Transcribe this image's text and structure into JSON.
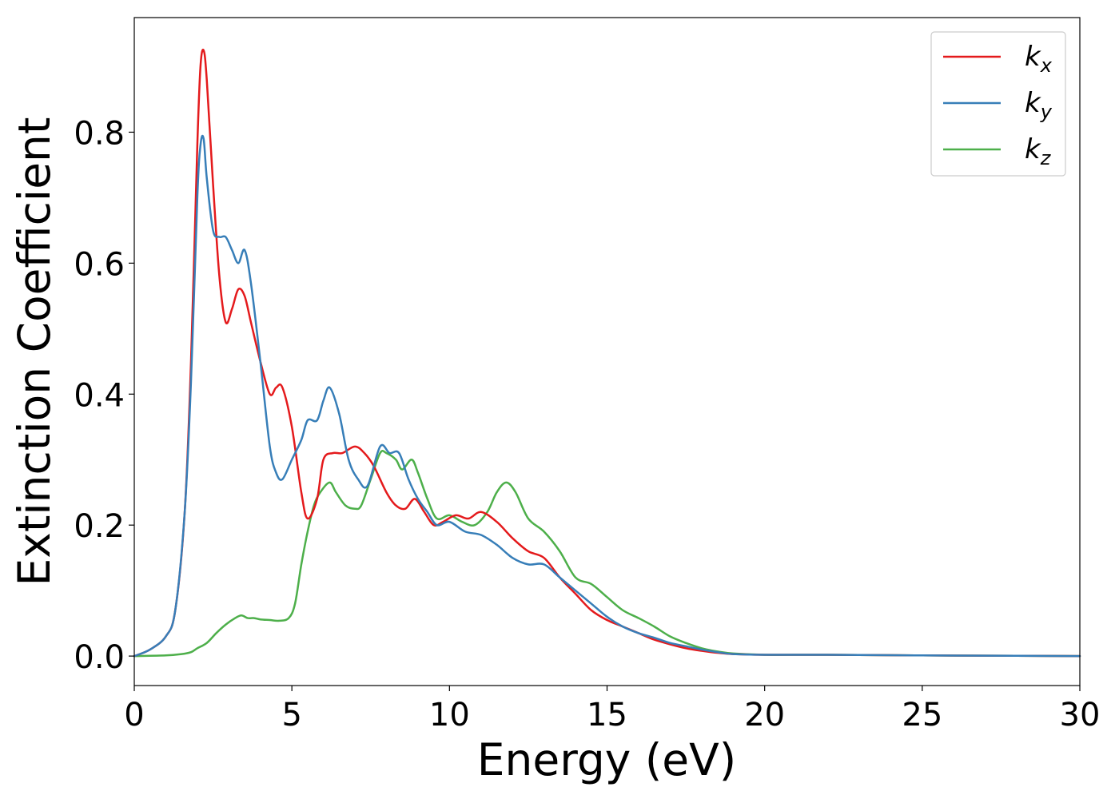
{
  "chart_data": {
    "type": "line",
    "title": "",
    "xlabel": "Energy (eV)",
    "ylabel": "Extinction Coefficient",
    "xlim": [
      0,
      30
    ],
    "ylim": [
      -0.045,
      0.975
    ],
    "xticks": [
      0,
      5,
      10,
      15,
      20,
      25,
      30
    ],
    "xtick_labels": [
      "0",
      "5",
      "10",
      "15",
      "20",
      "25",
      "30"
    ],
    "yticks": [
      0.0,
      0.2,
      0.4,
      0.6,
      0.8
    ],
    "ytick_labels": [
      "0.0",
      "0.2",
      "0.4",
      "0.6",
      "0.8"
    ],
    "grid": false,
    "legend_position": "top-right",
    "series": [
      {
        "name": "k_x",
        "label_base": "k",
        "label_sub": "x",
        "color": "#e41a1c",
        "x": [
          0,
          0.5,
          1.0,
          1.3,
          1.6,
          1.8,
          2.0,
          2.1,
          2.2,
          2.3,
          2.5,
          2.7,
          2.9,
          3.1,
          3.3,
          3.5,
          3.7,
          4.0,
          4.3,
          4.5,
          4.7,
          5.0,
          5.3,
          5.5,
          5.8,
          6.0,
          6.3,
          6.6,
          7.0,
          7.3,
          7.6,
          8.0,
          8.3,
          8.6,
          8.9,
          9.2,
          9.5,
          9.8,
          10.2,
          10.6,
          11.0,
          11.5,
          12.0,
          12.5,
          13.0,
          13.5,
          14.0,
          14.5,
          15.0,
          15.5,
          16.0,
          16.5,
          17.0,
          17.5,
          18.0,
          18.5,
          19.0,
          20.0,
          22.0,
          25.0,
          28.0,
          30.0
        ],
        "y": [
          0.0,
          0.01,
          0.03,
          0.07,
          0.22,
          0.45,
          0.78,
          0.9,
          0.925,
          0.88,
          0.72,
          0.58,
          0.51,
          0.53,
          0.56,
          0.55,
          0.51,
          0.45,
          0.4,
          0.41,
          0.41,
          0.35,
          0.25,
          0.21,
          0.24,
          0.3,
          0.31,
          0.31,
          0.32,
          0.31,
          0.29,
          0.25,
          0.23,
          0.225,
          0.24,
          0.22,
          0.2,
          0.205,
          0.215,
          0.21,
          0.22,
          0.205,
          0.18,
          0.16,
          0.15,
          0.12,
          0.095,
          0.07,
          0.055,
          0.045,
          0.035,
          0.025,
          0.018,
          0.012,
          0.008,
          0.005,
          0.003,
          0.002,
          0.002,
          0.001,
          0.0005,
          0.0
        ]
      },
      {
        "name": "k_y",
        "label_base": "k",
        "label_sub": "y",
        "color": "#377eb8",
        "x": [
          0,
          0.5,
          1.0,
          1.3,
          1.6,
          1.8,
          2.0,
          2.1,
          2.2,
          2.3,
          2.5,
          2.7,
          2.9,
          3.1,
          3.3,
          3.5,
          3.7,
          4.0,
          4.3,
          4.5,
          4.7,
          5.0,
          5.3,
          5.5,
          5.8,
          6.0,
          6.2,
          6.5,
          6.8,
          7.1,
          7.4,
          7.8,
          8.1,
          8.4,
          8.7,
          9.0,
          9.3,
          9.6,
          10.0,
          10.5,
          11.0,
          11.5,
          12.0,
          12.5,
          13.0,
          13.5,
          14.0,
          14.5,
          15.0,
          15.5,
          16.0,
          16.5,
          17.0,
          17.5,
          18.0,
          18.5,
          19.0,
          20.0,
          22.0,
          25.0,
          28.0,
          30.0
        ],
        "y": [
          0.0,
          0.01,
          0.03,
          0.07,
          0.22,
          0.42,
          0.7,
          0.78,
          0.79,
          0.73,
          0.65,
          0.64,
          0.64,
          0.62,
          0.6,
          0.62,
          0.57,
          0.45,
          0.32,
          0.28,
          0.27,
          0.3,
          0.33,
          0.36,
          0.36,
          0.39,
          0.41,
          0.37,
          0.3,
          0.27,
          0.26,
          0.32,
          0.31,
          0.31,
          0.27,
          0.24,
          0.22,
          0.2,
          0.205,
          0.19,
          0.185,
          0.17,
          0.15,
          0.14,
          0.14,
          0.12,
          0.1,
          0.08,
          0.06,
          0.045,
          0.035,
          0.028,
          0.02,
          0.015,
          0.01,
          0.006,
          0.003,
          0.002,
          0.002,
          0.001,
          0.0005,
          0.0
        ]
      },
      {
        "name": "k_z",
        "label_base": "k",
        "label_sub": "z",
        "color": "#4daf4a",
        "x": [
          0,
          1.0,
          1.5,
          1.8,
          2.0,
          2.3,
          2.6,
          2.9,
          3.2,
          3.4,
          3.6,
          3.8,
          4.0,
          4.3,
          4.6,
          4.9,
          5.1,
          5.3,
          5.5,
          5.7,
          5.9,
          6.2,
          6.4,
          6.7,
          7.0,
          7.2,
          7.5,
          7.8,
          8.0,
          8.3,
          8.5,
          8.8,
          9.0,
          9.3,
          9.6,
          10.0,
          10.4,
          10.8,
          11.2,
          11.5,
          11.8,
          12.1,
          12.5,
          13.0,
          13.5,
          14.0,
          14.5,
          15.0,
          15.5,
          16.0,
          16.5,
          17.0,
          17.5,
          18.0,
          18.5,
          19.0,
          20.0,
          22.0,
          25.0,
          28.0,
          30.0
        ],
        "y": [
          0.0,
          0.001,
          0.003,
          0.006,
          0.012,
          0.02,
          0.035,
          0.048,
          0.058,
          0.062,
          0.058,
          0.058,
          0.056,
          0.055,
          0.054,
          0.058,
          0.08,
          0.14,
          0.19,
          0.23,
          0.25,
          0.265,
          0.25,
          0.23,
          0.225,
          0.23,
          0.27,
          0.31,
          0.31,
          0.3,
          0.285,
          0.3,
          0.28,
          0.24,
          0.21,
          0.215,
          0.205,
          0.2,
          0.22,
          0.25,
          0.265,
          0.25,
          0.21,
          0.19,
          0.16,
          0.12,
          0.11,
          0.09,
          0.07,
          0.058,
          0.045,
          0.03,
          0.02,
          0.012,
          0.007,
          0.004,
          0.002,
          0.002,
          0.001,
          0.0005,
          0.0
        ]
      }
    ]
  }
}
